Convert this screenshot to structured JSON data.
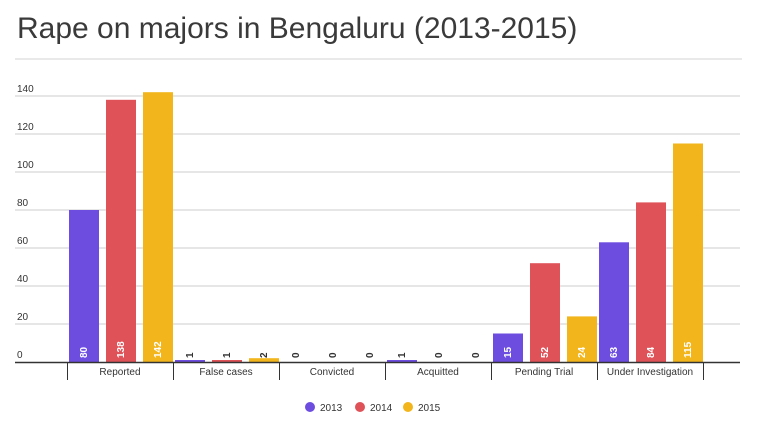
{
  "chart_data": {
    "type": "bar",
    "title": "Rape on majors in Bengaluru (2013-2015)",
    "categories": [
      "Reported",
      "False cases",
      "Convicted",
      "Acquitted",
      "Pending Trial",
      "Under Investigation"
    ],
    "series": [
      {
        "name": "2013",
        "color": "#6c4de0",
        "values": [
          80,
          1,
          0,
          1,
          15,
          63
        ]
      },
      {
        "name": "2014",
        "color": "#de5258",
        "values": [
          138,
          1,
          0,
          0,
          52,
          84
        ]
      },
      {
        "name": "2015",
        "color": "#f2b51b",
        "values": [
          142,
          2,
          0,
          0,
          24,
          115
        ]
      }
    ],
    "yticks": [
      0,
      20,
      40,
      60,
      80,
      100,
      120,
      140
    ],
    "ylim": [
      0,
      150
    ],
    "xlabel": "",
    "ylabel": "",
    "grid": true,
    "legend": "bottom-center"
  }
}
